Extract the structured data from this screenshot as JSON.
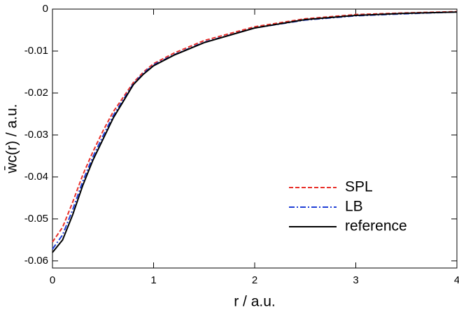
{
  "chart_data": {
    "type": "line",
    "xlabel": "r / a.u.",
    "ylabel": "w̄c(r) / a.u.",
    "x": [
      0,
      0.1,
      0.2,
      0.3,
      0.4,
      0.5,
      0.6,
      0.7,
      0.8,
      0.9,
      1.0,
      1.2,
      1.5,
      2.0,
      2.5,
      3.0,
      3.5,
      4.0
    ],
    "series": [
      {
        "name": "SPL",
        "color": "#e8302a",
        "dash": "6,3",
        "values": [
          -0.0555,
          -0.052,
          -0.046,
          -0.0395,
          -0.034,
          -0.029,
          -0.0245,
          -0.021,
          -0.0175,
          -0.015,
          -0.013,
          -0.0105,
          -0.0075,
          -0.0042,
          -0.0023,
          -0.0013,
          -0.0009,
          -0.0006
        ]
      },
      {
        "name": "LB",
        "color": "#1f3fd6",
        "dash": "8,3,2,3",
        "values": [
          -0.0572,
          -0.0538,
          -0.0478,
          -0.041,
          -0.0352,
          -0.0302,
          -0.0254,
          -0.0216,
          -0.0178,
          -0.0153,
          -0.0133,
          -0.0109,
          -0.0079,
          -0.0045,
          -0.0026,
          -0.0016,
          -0.0011,
          -0.0007
        ]
      },
      {
        "name": "reference",
        "color": "#000000",
        "dash": "",
        "values": [
          -0.058,
          -0.055,
          -0.049,
          -0.042,
          -0.036,
          -0.031,
          -0.026,
          -0.022,
          -0.018,
          -0.0155,
          -0.0135,
          -0.011,
          -0.008,
          -0.0045,
          -0.0025,
          -0.0015,
          -0.001,
          -0.0007
        ]
      }
    ],
    "xlim": [
      0,
      4
    ],
    "xticks": [
      0,
      1,
      2,
      3,
      4
    ],
    "ylim": [
      -0.0617,
      0
    ],
    "yticks": [
      0,
      -0.01,
      -0.02,
      -0.03,
      -0.04,
      -0.05,
      -0.06
    ],
    "legend": "lower right"
  }
}
